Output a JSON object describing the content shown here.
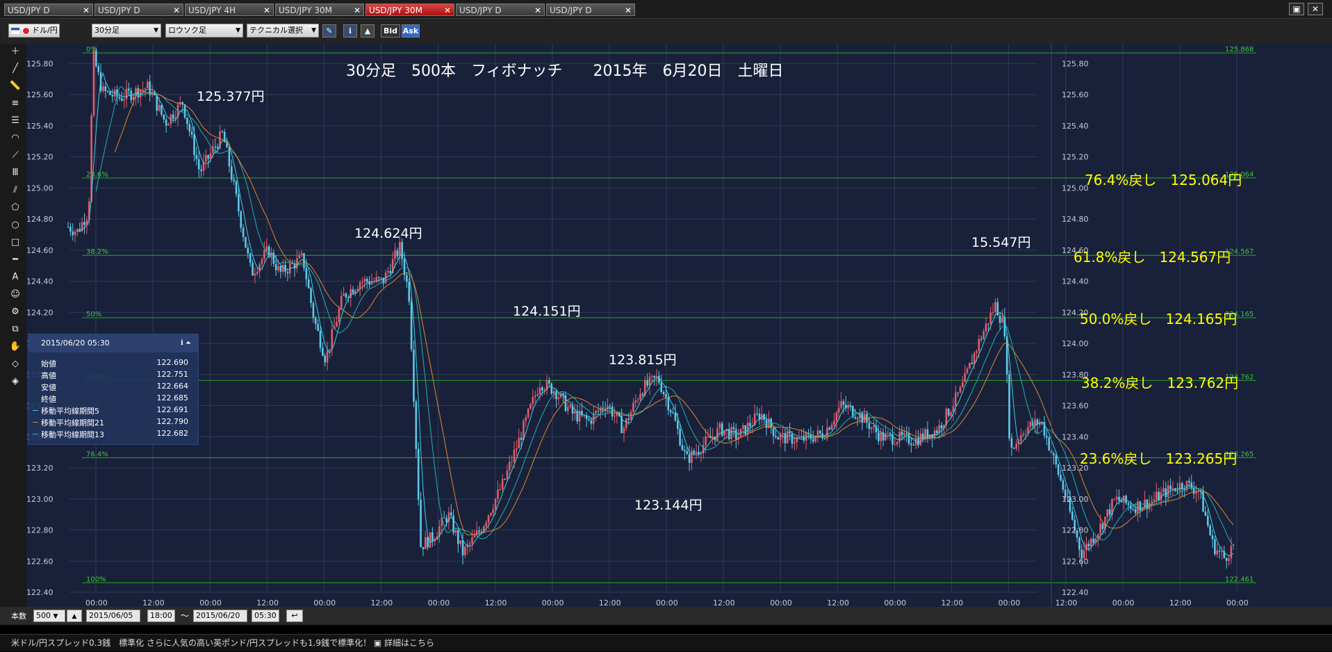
{
  "tabs": [
    {
      "label": "USD/JPY D",
      "active": false
    },
    {
      "label": "USD/JPY D",
      "active": false
    },
    {
      "label": "USD/JPY 4H",
      "active": false
    },
    {
      "label": "USD/JPY 30M",
      "active": false
    },
    {
      "label": "USD/JPY 30M",
      "active": true
    },
    {
      "label": "USD/JPY D",
      "active": false
    },
    {
      "label": "USD/JPY D",
      "active": false
    }
  ],
  "toolbar": {
    "pair_label": "ドル/円",
    "timeframe_label": "30分足",
    "chart_type_label": "ロウソク足",
    "technical_label": "テクニカル選択",
    "bid_label": "Bid",
    "ask_label": "Ask"
  },
  "chart_title": "30分足　500本　フィボナッチ　　2015年　6月20日　土曜日",
  "annotations": {
    "high": "125.868円",
    "p1": "125.377円",
    "p2": "124.624円",
    "p3": "124.151円",
    "p4": "123.815円",
    "p5": "123.144円",
    "low": "122.461円",
    "p6": "15.547円",
    "fib764": "76.4%戻し　125.064円",
    "fib618": "61.8%戻し　124.567円",
    "fib500": "50.0%戻し　124.165円",
    "fib382": "38.2%戻し　123.762円",
    "fib236": "23.6%戻し　123.265円"
  },
  "fib_levels": [
    {
      "pct": "0%",
      "price": 125.868,
      "label": "125.868"
    },
    {
      "pct": "23.6%",
      "price": 125.064,
      "label": "125.064"
    },
    {
      "pct": "38.2%",
      "price": 124.567,
      "label": "124.567"
    },
    {
      "pct": "50%",
      "price": 124.165,
      "label": "124.165"
    },
    {
      "pct": "61.8%",
      "price": 123.762,
      "label": "123.762"
    },
    {
      "pct": "76.4%",
      "price": 123.265,
      "label": "123.265"
    },
    {
      "pct": "100%",
      "price": 122.461,
      "label": "122.461"
    }
  ],
  "info_panel": {
    "datetime": "2015/06/20 05:30",
    "rows": [
      {
        "label": "始値",
        "value": "122.690"
      },
      {
        "label": "高値",
        "value": "122.751"
      },
      {
        "label": "安値",
        "value": "122.664"
      },
      {
        "label": "終値",
        "value": "122.685"
      },
      {
        "label": "移動平均線期間5",
        "value": "122.691"
      },
      {
        "label": "移動平均線期間21",
        "value": "122.790"
      },
      {
        "label": "移動平均線期間13",
        "value": "122.682"
      }
    ]
  },
  "bottom_bar": {
    "count_label": "本数",
    "count_value": "500",
    "from_date": "2015/06/05",
    "from_time": "18:00",
    "tilde": "〜",
    "to_date": "2015/06/20",
    "to_time": "05:30"
  },
  "ticker": "米ドル/円スプレッド0.3銭　標準化 さらに人気の高い英ポンド/円スプレッドも1.9銭で標準化！ ▣ 詳細はこちら",
  "colors": {
    "background": "#19213a",
    "grid": "#2e3a55",
    "fib_line": "#22aa22",
    "up_candle": "#e25b6a",
    "down_candle": "#5ec8ea",
    "ma5": "#39d3e8",
    "ma13": "#20b0b0",
    "ma21": "#e0872a",
    "fib_text": "#ffff00"
  },
  "chart_data": {
    "type": "candlestick",
    "title": "30分足　500本　フィボナッチ　　2015年　6月20日　土曜日",
    "ylim": [
      122.4,
      125.9
    ],
    "yticks": [
      "125.80",
      "125.60",
      "125.40",
      "125.20",
      "125.00",
      "124.80",
      "124.60",
      "124.40",
      "124.20",
      "124.00",
      "123.80",
      "123.60",
      "123.40",
      "123.20",
      "123.00",
      "122.80",
      "122.60",
      "122.40"
    ],
    "xticks": [
      "00:00",
      "12:00",
      "00:00",
      "12:00",
      "00:00",
      "12:00",
      "00:00",
      "12:00",
      "00:00",
      "12:00",
      "00:00",
      "12:00",
      "00:00",
      "12:00",
      "00:00",
      "12:00",
      "00:00",
      "12:00",
      "00:00",
      "12:00",
      "00:00"
    ],
    "price_path": [
      [
        0,
        124.75
      ],
      [
        8,
        124.72
      ],
      [
        18,
        124.85
      ],
      [
        22,
        125.85
      ],
      [
        30,
        125.62
      ],
      [
        45,
        125.58
      ],
      [
        70,
        125.65
      ],
      [
        85,
        125.42
      ],
      [
        100,
        125.55
      ],
      [
        115,
        125.1
      ],
      [
        135,
        125.35
      ],
      [
        145,
        125.0
      ],
      [
        160,
        124.45
      ],
      [
        175,
        124.6
      ],
      [
        185,
        124.45
      ],
      [
        205,
        124.55
      ],
      [
        215,
        124.15
      ],
      [
        225,
        123.9
      ],
      [
        240,
        124.3
      ],
      [
        255,
        124.4
      ],
      [
        275,
        124.4
      ],
      [
        290,
        124.62
      ],
      [
        298,
        124.3
      ],
      [
        308,
        122.7
      ],
      [
        318,
        122.75
      ],
      [
        332,
        122.9
      ],
      [
        345,
        122.65
      ],
      [
        360,
        122.8
      ],
      [
        380,
        123.1
      ],
      [
        395,
        123.4
      ],
      [
        412,
        123.75
      ],
      [
        425,
        123.7
      ],
      [
        440,
        123.55
      ],
      [
        455,
        123.5
      ],
      [
        470,
        123.62
      ],
      [
        485,
        123.45
      ],
      [
        500,
        123.7
      ],
      [
        515,
        123.78
      ],
      [
        528,
        123.55
      ],
      [
        540,
        123.25
      ],
      [
        555,
        123.35
      ],
      [
        570,
        123.45
      ],
      [
        585,
        123.4
      ],
      [
        605,
        123.55
      ],
      [
        620,
        123.4
      ],
      [
        640,
        123.38
      ],
      [
        660,
        123.42
      ],
      [
        675,
        123.6
      ],
      [
        690,
        123.55
      ],
      [
        710,
        123.4
      ],
      [
        740,
        123.38
      ],
      [
        760,
        123.45
      ],
      [
        780,
        123.7
      ],
      [
        795,
        124.0
      ],
      [
        810,
        124.25
      ],
      [
        818,
        124.1
      ],
      [
        823,
        123.3
      ],
      [
        835,
        123.45
      ],
      [
        850,
        123.5
      ],
      [
        870,
        123.05
      ],
      [
        885,
        122.65
      ],
      [
        900,
        122.8
      ],
      [
        915,
        123.0
      ],
      [
        930,
        122.95
      ],
      [
        945,
        122.98
      ],
      [
        960,
        123.05
      ],
      [
        975,
        123.1
      ],
      [
        988,
        123.05
      ],
      [
        1000,
        122.7
      ],
      [
        1010,
        122.62
      ],
      [
        1018,
        122.7
      ]
    ],
    "n_candles": 500
  }
}
